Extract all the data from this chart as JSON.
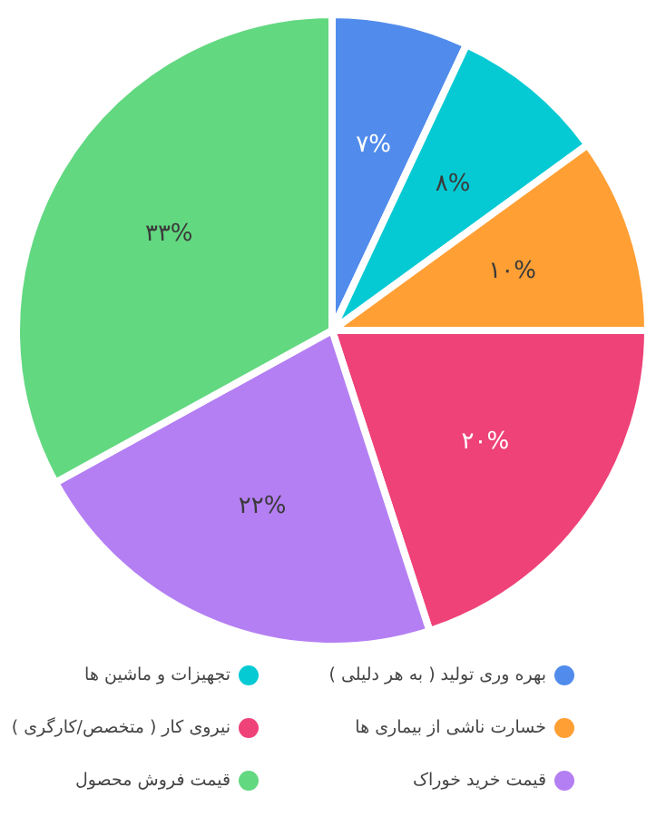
{
  "chart_data": {
    "type": "pie",
    "categories": [
      "بهره وری تولید ( به هر دلیلی )",
      "تجهیزات و ماشین ها",
      "خسارت ناشی از بیماری ها",
      "نیروی کار ( متخصص/کارگری )",
      "قیمت خرید خوراک",
      "قیمت فروش محصول"
    ],
    "values": [
      7,
      8,
      10,
      20,
      22,
      33
    ],
    "value_labels": [
      "۷%",
      "۸%",
      "۱۰%",
      "۲۰%",
      "۲۲%",
      "۳۳%"
    ],
    "colors": [
      "#518cec",
      "#06cad3",
      "#ff9f34",
      "#ee4279",
      "#b47ff3",
      "#62d880"
    ],
    "legend": "bottom"
  }
}
